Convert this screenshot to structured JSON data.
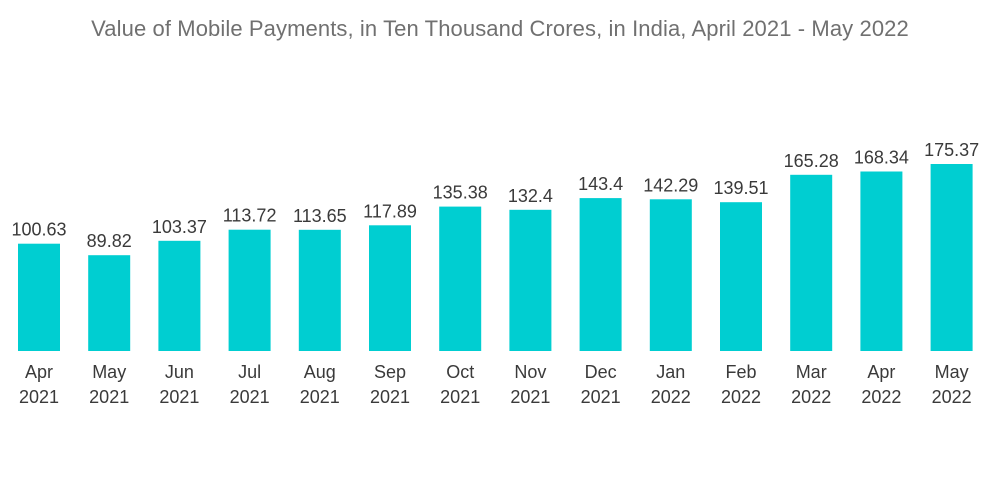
{
  "chart_data": {
    "type": "bar",
    "title": "Value of Mobile Payments, in Ten Thousand Crores, in India, April 2021 - May 2022",
    "categories": [
      [
        "Apr",
        "2021"
      ],
      [
        "May",
        "2021"
      ],
      [
        "Jun",
        "2021"
      ],
      [
        "Jul",
        "2021"
      ],
      [
        "Aug",
        "2021"
      ],
      [
        "Sep",
        "2021"
      ],
      [
        "Oct",
        "2021"
      ],
      [
        "Nov",
        "2021"
      ],
      [
        "Dec",
        "2021"
      ],
      [
        "Jan",
        "2022"
      ],
      [
        "Feb",
        "2022"
      ],
      [
        "Mar",
        "2022"
      ],
      [
        "Apr",
        "2022"
      ],
      [
        "May",
        "2022"
      ]
    ],
    "values": [
      100.63,
      89.82,
      103.37,
      113.72,
      113.65,
      117.89,
      135.38,
      132.4,
      143.4,
      142.29,
      139.51,
      165.28,
      168.34,
      175.37
    ],
    "value_labels": [
      "100.63",
      "89.82",
      "103.37",
      "113.72",
      "113.65",
      "117.89",
      "135.38",
      "132.4",
      "143.4",
      "142.29",
      "139.51",
      "165.28",
      "168.34",
      "175.37"
    ],
    "xlabel": "",
    "ylabel": "",
    "ylim": [
      0,
      175.37
    ],
    "grid": false,
    "legend": "none",
    "bar_color": "#00CED1"
  }
}
